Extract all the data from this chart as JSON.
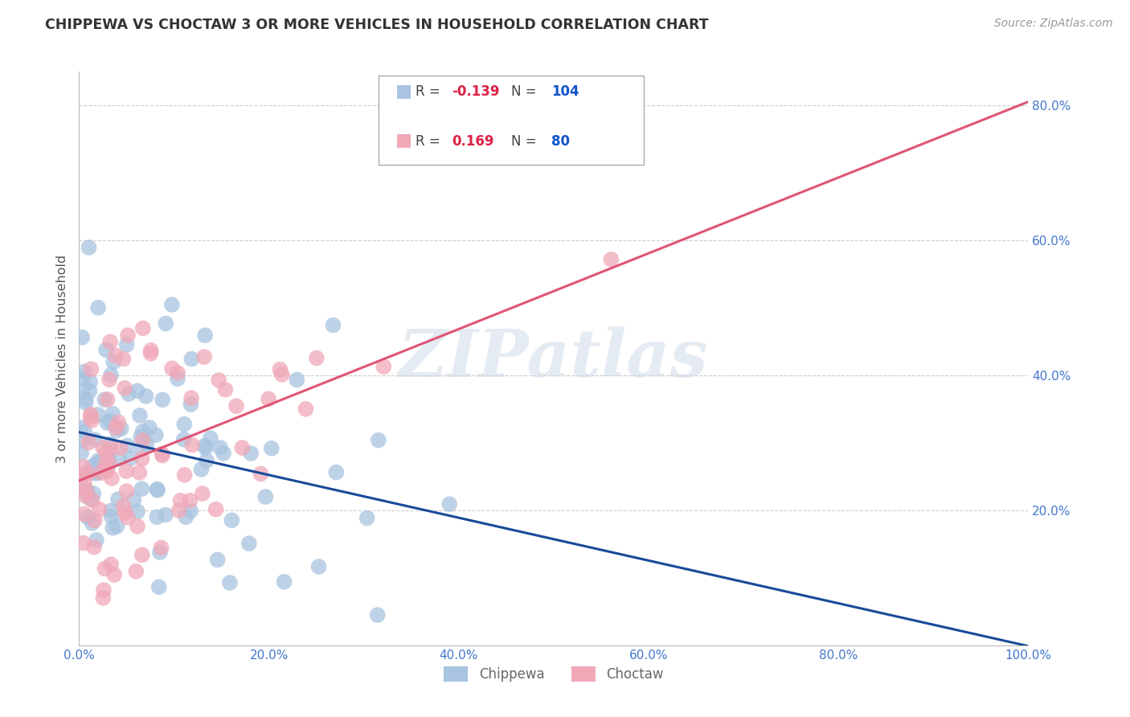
{
  "title": "CHIPPEWA VS CHOCTAW 3 OR MORE VEHICLES IN HOUSEHOLD CORRELATION CHART",
  "source": "Source: ZipAtlas.com",
  "ylabel": "3 or more Vehicles in Household",
  "chippewa_R": -0.139,
  "chippewa_N": 104,
  "choctaw_R": 0.169,
  "choctaw_N": 80,
  "chippewa_color": "#a8c4e0",
  "choctaw_color": "#f0a8b8",
  "chippewa_line_color": "#1a4a99",
  "choctaw_line_color": "#e05575",
  "legend_R_color": "#dd2244",
  "legend_N_color": "#1155cc",
  "watermark": "ZIPatlas",
  "xlim": [
    0.0,
    1.0
  ],
  "ylim": [
    0.0,
    0.85
  ],
  "yticks": [
    0.2,
    0.4,
    0.6,
    0.8
  ],
  "ytick_labels": [
    "20.0%",
    "40.0%",
    "60.0%",
    "80.0%"
  ],
  "xtick_labels": [
    "0.0%",
    "20.0%",
    "40.0%",
    "60.0%",
    "80.0%",
    "100.0%"
  ],
  "xticks": [
    0.0,
    0.2,
    0.4,
    0.6,
    0.8,
    1.0
  ],
  "background_color": "#ffffff",
  "grid_color": "#cccccc"
}
